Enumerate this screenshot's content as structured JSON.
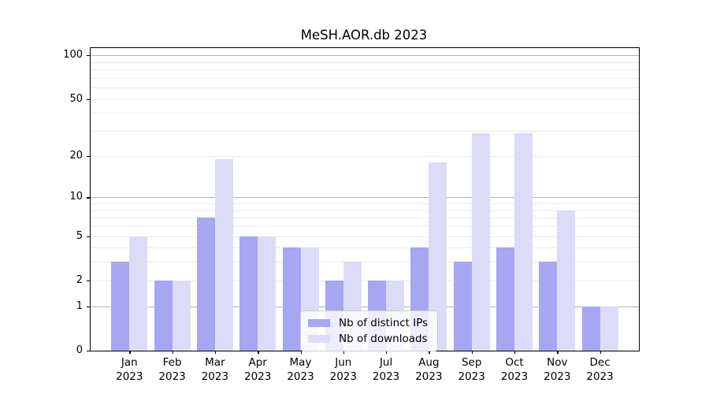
{
  "figure": {
    "title": "MeSH.AOR.db 2023",
    "background": "#ffffff"
  },
  "chart_data": {
    "type": "bar",
    "title": "MeSH.AOR.db 2023",
    "categories": [
      "Jan 2023",
      "Feb 2023",
      "Mar 2023",
      "Apr 2023",
      "May 2023",
      "Jun 2023",
      "Jul 2023",
      "Aug 2023",
      "Sep 2023",
      "Oct 2023",
      "Nov 2023",
      "Dec 2023"
    ],
    "series": [
      {
        "name": "Nb of distinct IPs",
        "color": "#a6a6f2",
        "values": [
          3,
          2,
          7,
          5,
          4,
          2,
          2,
          4,
          3,
          4,
          3,
          1
        ]
      },
      {
        "name": "Nb of downloads",
        "color": "#dcdcf8",
        "values": [
          5,
          2,
          19,
          5,
          4,
          3,
          2,
          18,
          29,
          29,
          8,
          1
        ]
      }
    ],
    "xlabel": "",
    "ylabel": "",
    "yscale": "log1p",
    "ylim": [
      0,
      112
    ],
    "yticks": [
      0,
      1,
      2,
      5,
      10,
      20,
      50,
      100
    ],
    "major_gridlines": [
      1,
      10,
      100
    ],
    "minor_gridlines": [
      2,
      3,
      4,
      5,
      6,
      7,
      8,
      9,
      20,
      30,
      40,
      50,
      60,
      70,
      80,
      90
    ],
    "grid": true,
    "legend_position": "lower-center",
    "colors": {
      "major_grid": "#b3b3b3",
      "minor_grid": "#ebebeb",
      "spine": "#000000",
      "text": "#000000",
      "legend_border": "#cccccc",
      "legend_bg": "rgba(255,255,255,0.8)"
    }
  }
}
